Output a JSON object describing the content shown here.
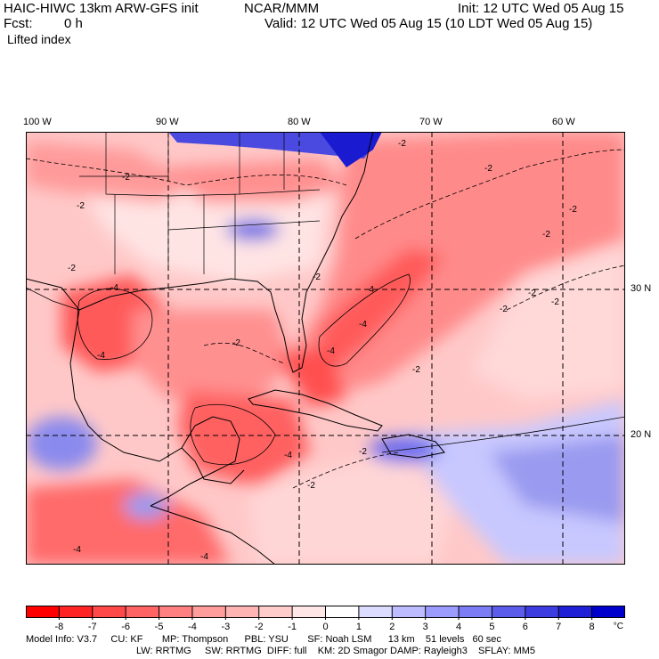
{
  "header": {
    "title_left": "HAIC-HIWC 13km ARW-GFS init",
    "agency": "NCAR/MMM",
    "init": "Init: 12 UTC Wed 05 Aug 15",
    "fcst_label": "Fcst:",
    "fcst_value": "0 h",
    "valid": "Valid: 12 UTC Wed 05 Aug 15 (10 LDT Wed 05 Aug 15)",
    "field": "Lifted index"
  },
  "map": {
    "lon_labels": [
      "100 W",
      "90 W",
      "80 W",
      "70 W",
      "60 W"
    ],
    "lat_labels": [
      "30 N",
      "20 N"
    ],
    "contour_labels": [
      "-2",
      "-4"
    ],
    "colors": {
      "strong_neg": "#ff5050",
      "mid_neg": "#ff9090",
      "light_neg": "#ffc8c8",
      "neutral": "#fff0f0",
      "light_pos": "#c8c8ff",
      "mid_pos": "#7070f0",
      "strong_pos": "#2828e0"
    }
  },
  "colorbar": {
    "ticks": [
      "-8",
      "-7",
      "-6",
      "-5",
      "-4",
      "-3",
      "-2",
      "-1",
      "0",
      "1",
      "2",
      "3",
      "4",
      "5",
      "6",
      "7",
      "8"
    ],
    "unit": "°C",
    "colors": [
      "#ff0000",
      "#ff2424",
      "#ff4848",
      "#ff6464",
      "#ff8080",
      "#ff9c9c",
      "#ffb4b4",
      "#ffcccc",
      "#ffe6e6",
      "#ffffff",
      "#dcdcff",
      "#bcbcff",
      "#9c9cff",
      "#7c7cf4",
      "#5c5cea",
      "#3c3ce0",
      "#2020d6",
      "#0000cc"
    ]
  },
  "model_info": {
    "line1": "Model Info: V3.7     CU: KF       MP: Thompson      PBL: YSU       SF: Noah LSM      13 km    51 levels   60 sec",
    "line2": "LW: RRTMG     SW: RRTMG  DIFF: full    KM: 2D Smagor DAMP: Rayleigh3    SFLAY: MM5"
  }
}
